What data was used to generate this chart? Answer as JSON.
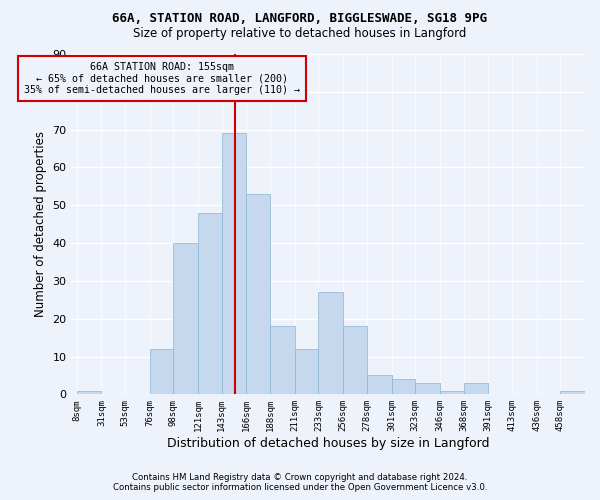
{
  "title1": "66A, STATION ROAD, LANGFORD, BIGGLESWADE, SG18 9PG",
  "title2": "Size of property relative to detached houses in Langford",
  "xlabel": "Distribution of detached houses by size in Langford",
  "ylabel": "Number of detached properties",
  "footer1": "Contains HM Land Registry data © Crown copyright and database right 2024.",
  "footer2": "Contains public sector information licensed under the Open Government Licence v3.0.",
  "annotation_line1": "66A STATION ROAD: 155sqm",
  "annotation_line2": "← 65% of detached houses are smaller (200)",
  "annotation_line3": "35% of semi-detached houses are larger (110) →",
  "bar_color": "#c5d8ed",
  "bar_edge_color": "#8ab4d4",
  "vline_x": 155,
  "vline_color": "#cc0000",
  "background_color": "#eef2fa",
  "grid_color": "#ffffff",
  "categories": [
    "8sqm",
    "31sqm",
    "53sqm",
    "76sqm",
    "98sqm",
    "121sqm",
    "143sqm",
    "166sqm",
    "188sqm",
    "211sqm",
    "233sqm",
    "256sqm",
    "278sqm",
    "301sqm",
    "323sqm",
    "346sqm",
    "368sqm",
    "391sqm",
    "413sqm",
    "436sqm",
    "458sqm"
  ],
  "bin_edges": [
    8,
    31,
    53,
    76,
    98,
    121,
    143,
    166,
    188,
    211,
    233,
    256,
    278,
    301,
    323,
    346,
    368,
    391,
    413,
    436,
    458,
    481
  ],
  "values": [
    1,
    0,
    0,
    12,
    40,
    48,
    69,
    53,
    18,
    12,
    27,
    18,
    5,
    4,
    3,
    1,
    3,
    0,
    0,
    0,
    1
  ],
  "ylim": [
    0,
    90
  ],
  "yticks": [
    0,
    10,
    20,
    30,
    40,
    50,
    60,
    70,
    80,
    90
  ]
}
